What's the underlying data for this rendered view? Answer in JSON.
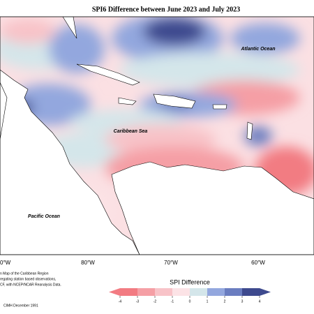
{
  "header": {
    "title": "SPI6 Difference between June 2023 and July 2023"
  },
  "map": {
    "labels": [
      "Atlantic Ocean",
      "Caribbean Sea",
      "Pacific Ocean"
    ],
    "longitudes": [
      "0°W",
      "80°W",
      "70°W",
      "60°W"
    ]
  },
  "legend": {
    "title": "SPI Difference",
    "ticks": [
      -4,
      -3,
      -2,
      -1,
      0,
      1,
      2,
      3,
      4
    ],
    "colors": [
      "#f27b82",
      "#f59fa5",
      "#f8c3c8",
      "#fce3e6",
      "#d4e6ea",
      "#93a7de",
      "#6a7dc0",
      "#3e4a8e"
    ]
  },
  "footnote": {
    "lines": [
      "n Map of the Caribbean Region",
      "regating station based observations,",
      "CF, with NCEP/NCAR Reanalysis Data."
    ],
    "credit": "CIMH December 1991"
  }
}
